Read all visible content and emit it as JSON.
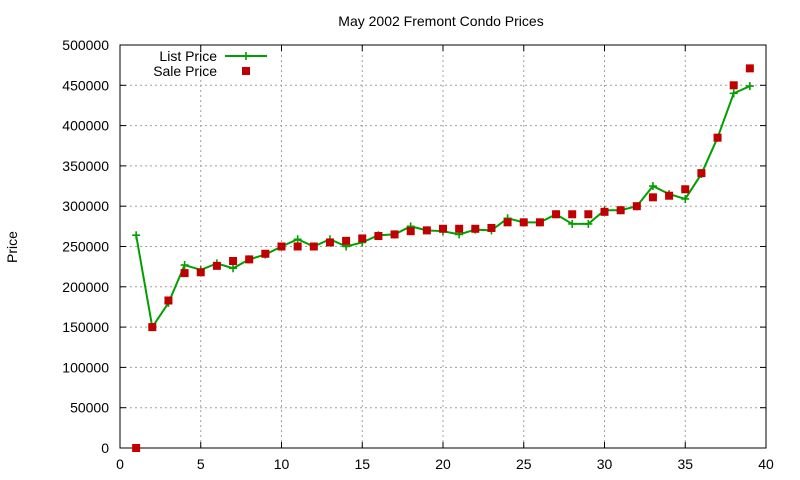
{
  "chart_data": {
    "type": "line",
    "title": "May 2002 Fremont Condo Prices",
    "xlabel": "",
    "ylabel": "Price",
    "xlim": [
      0,
      40
    ],
    "ylim": [
      0,
      500000
    ],
    "xticks": [
      0,
      5,
      10,
      15,
      20,
      25,
      30,
      35,
      40
    ],
    "yticks": [
      0,
      50000,
      100000,
      150000,
      200000,
      250000,
      300000,
      350000,
      400000,
      450000,
      500000
    ],
    "grid": true,
    "legend_position": "top-left",
    "series": [
      {
        "name": "List Price",
        "style": "line-with-plus-markers",
        "color": "#00a000",
        "x": [
          1,
          2,
          3,
          4,
          5,
          6,
          7,
          8,
          9,
          10,
          11,
          12,
          13,
          14,
          15,
          16,
          17,
          18,
          19,
          20,
          21,
          22,
          23,
          24,
          25,
          26,
          27,
          28,
          29,
          30,
          31,
          32,
          33,
          34,
          35,
          36,
          37,
          38,
          39
        ],
        "y": [
          264000,
          150000,
          180000,
          227000,
          221000,
          229000,
          223000,
          234000,
          240000,
          250000,
          259000,
          250000,
          259000,
          250000,
          255000,
          264000,
          265000,
          275000,
          270000,
          269000,
          265000,
          271000,
          270000,
          285000,
          280000,
          280000,
          290000,
          278000,
          278000,
          295000,
          295000,
          300000,
          325000,
          315000,
          309000,
          340000,
          385000,
          440000,
          449000
        ]
      },
      {
        "name": "Sale Price",
        "style": "square-markers",
        "color": "#c00000",
        "x": [
          1,
          2,
          3,
          4,
          5,
          6,
          7,
          8,
          9,
          10,
          11,
          12,
          13,
          14,
          15,
          16,
          17,
          18,
          19,
          20,
          21,
          22,
          23,
          24,
          25,
          26,
          27,
          28,
          29,
          30,
          31,
          32,
          33,
          34,
          35,
          36,
          37,
          38,
          39
        ],
        "y": [
          0,
          150000,
          183000,
          217000,
          218000,
          226000,
          232000,
          234000,
          241000,
          250000,
          250000,
          250000,
          255000,
          257000,
          260000,
          263000,
          265000,
          269000,
          270000,
          272000,
          272000,
          272000,
          273000,
          280000,
          280000,
          280000,
          290000,
          290000,
          290000,
          293000,
          295000,
          300000,
          311000,
          313000,
          321000,
          341000,
          385000,
          450000,
          471000
        ]
      }
    ]
  }
}
